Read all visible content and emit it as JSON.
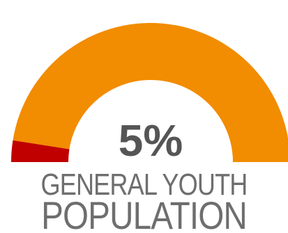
{
  "chart_data": {
    "type": "gauge",
    "value": 5,
    "max": 100,
    "value_label": "5%",
    "caption_line1": "GENERAL YOUTH",
    "caption_line2": "POPULATION",
    "colors": {
      "value": "#c00000",
      "remainder": "#f28c00",
      "text": "#555555"
    }
  }
}
